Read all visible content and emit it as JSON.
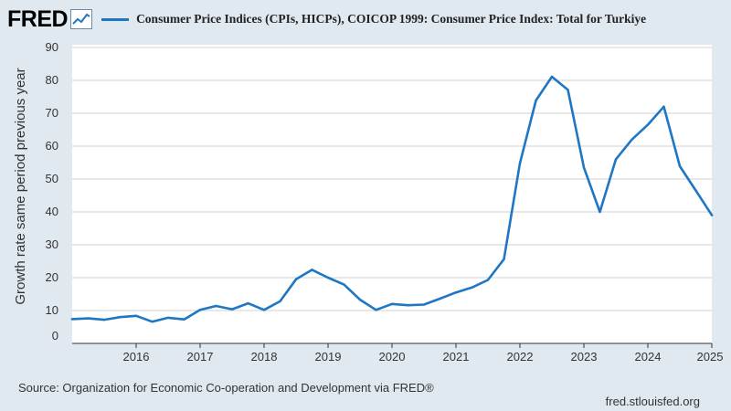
{
  "header": {
    "logo_text": "FRED",
    "logo_icon": "line-chart-icon",
    "legend_label": "Consumer Price Indices (CPIs, HICPs), COICOP 1999: Consumer Price Index: Total for Turkiye"
  },
  "footer": {
    "source": "Source: Organization for Economic Co-operation and Development via FRED®",
    "url": "fred.stlouisfed.org"
  },
  "colors": {
    "background": "#e1e9f0",
    "plot_background": "#ffffff",
    "series": "#1f77c4",
    "grid": "#d0d0d0"
  },
  "chart_data": {
    "type": "line",
    "title": "",
    "xlabel": "",
    "ylabel": "Growth rate same period previous year",
    "xlim": [
      2015.0,
      2025.0
    ],
    "ylim": [
      0,
      90
    ],
    "y_ticks": [
      0,
      10,
      20,
      30,
      40,
      50,
      60,
      70,
      80,
      90
    ],
    "x_ticks": [
      2016,
      2017,
      2018,
      2019,
      2020,
      2021,
      2022,
      2023,
      2024,
      2025
    ],
    "grid": true,
    "legend": "top",
    "series": [
      {
        "name": "Consumer Price Indices (CPIs, HICPs), COICOP 1999: Consumer Price Index: Total for Turkiye",
        "x": [
          2015.0,
          2015.25,
          2015.5,
          2015.75,
          2016.0,
          2016.25,
          2016.5,
          2016.75,
          2017.0,
          2017.25,
          2017.5,
          2017.75,
          2018.0,
          2018.25,
          2018.5,
          2018.75,
          2019.0,
          2019.25,
          2019.5,
          2019.75,
          2020.0,
          2020.25,
          2020.5,
          2020.75,
          2021.0,
          2021.25,
          2021.5,
          2021.75,
          2022.0,
          2022.25,
          2022.5,
          2022.75,
          2023.0,
          2023.25,
          2023.5,
          2023.75,
          2024.0,
          2024.25,
          2024.5,
          2024.75,
          2025.0
        ],
        "y": [
          7.4,
          7.6,
          7.2,
          8.0,
          8.4,
          6.6,
          7.8,
          7.3,
          10.2,
          11.4,
          10.4,
          12.2,
          10.2,
          12.8,
          19.5,
          22.4,
          20.0,
          17.9,
          13.3,
          10.2,
          12.0,
          11.6,
          11.8,
          13.6,
          15.5,
          17.0,
          19.3,
          25.6,
          54.8,
          73.9,
          81.1,
          77.1,
          53.5,
          40.0,
          56.0,
          62.0,
          66.5,
          72.0,
          53.9,
          46.5,
          39.0
        ]
      }
    ]
  }
}
